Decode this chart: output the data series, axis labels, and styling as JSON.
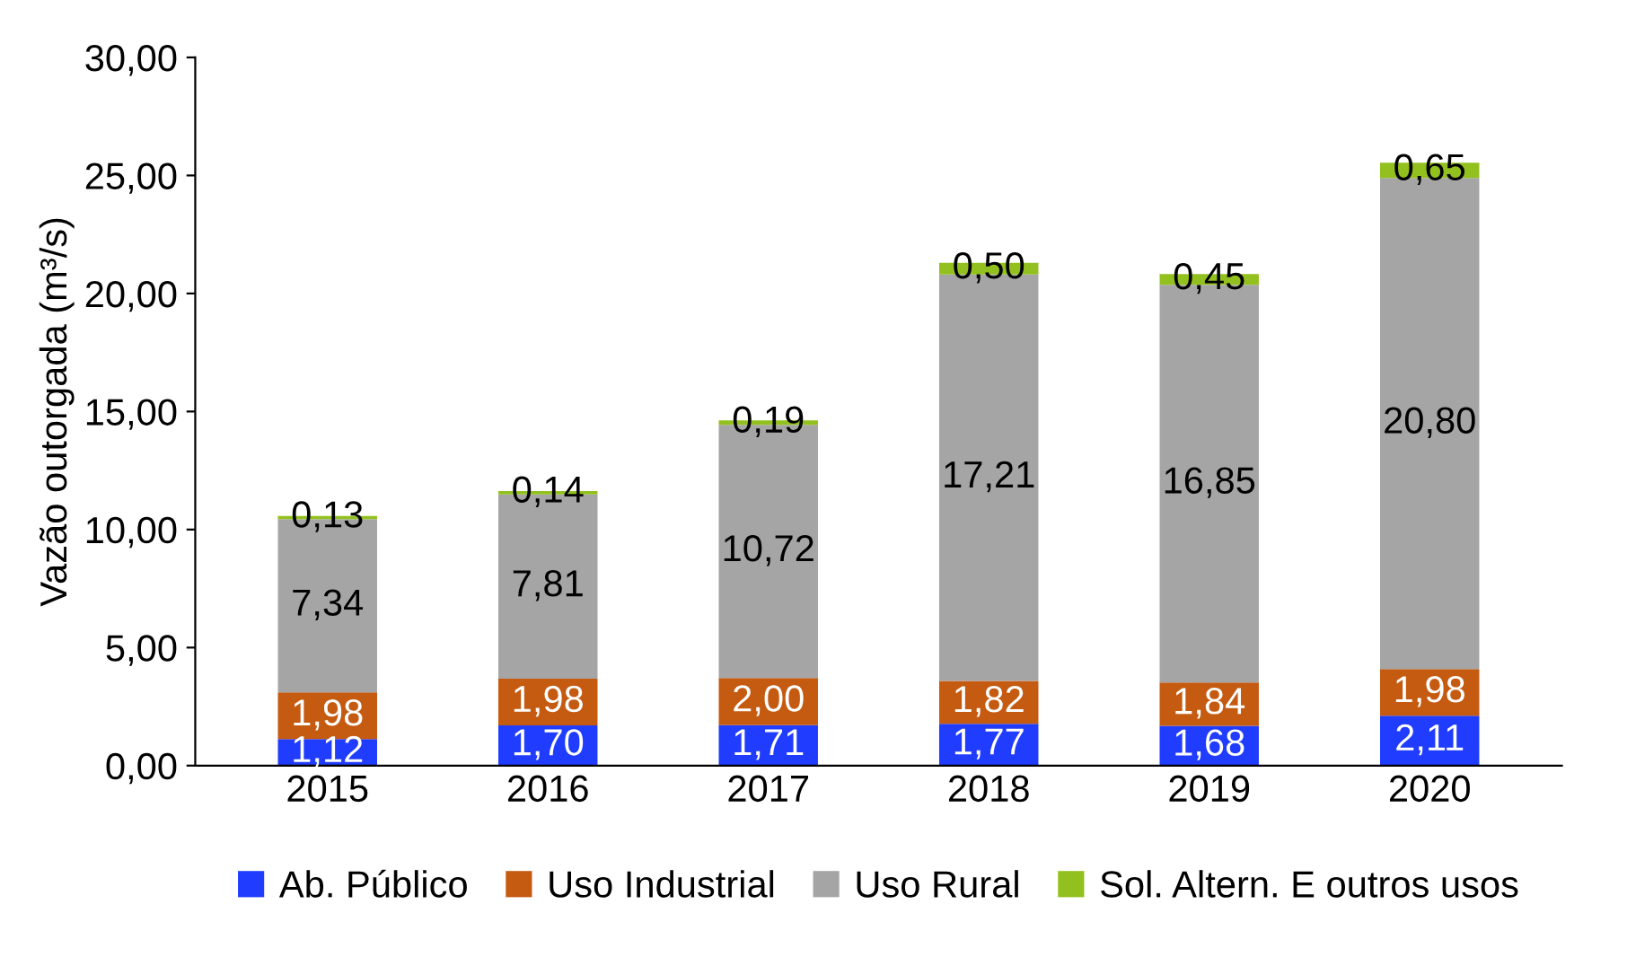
{
  "chart_data": {
    "type": "bar",
    "stacked": true,
    "ylabel": "Vazão outorgada (m³/s)",
    "categories": [
      "2015",
      "2016",
      "2017",
      "2018",
      "2019",
      "2020"
    ],
    "series": [
      {
        "name": "Ab. Público",
        "color": "#1f3cff",
        "values": [
          1.12,
          1.7,
          1.71,
          1.77,
          1.68,
          2.11
        ],
        "value_labels": [
          "1,12",
          "1,70",
          "1,71",
          "1,77",
          "1,68",
          "2,11"
        ]
      },
      {
        "name": "Uso Industrial",
        "color": "#c55a11",
        "values": [
          1.98,
          1.98,
          2.0,
          1.82,
          1.84,
          1.98
        ],
        "value_labels": [
          "1,98",
          "1,98",
          "2,00",
          "1,82",
          "1,84",
          "1,98"
        ]
      },
      {
        "name": "Uso Rural",
        "color": "#a5a5a5",
        "values": [
          7.34,
          7.81,
          10.72,
          17.21,
          16.85,
          20.8
        ],
        "value_labels": [
          "7,34",
          "7,81",
          "10,72",
          "17,21",
          "16,85",
          "20,80"
        ]
      },
      {
        "name": "Sol. Altern. E outros usos",
        "color": "#92c11f",
        "values": [
          0.13,
          0.14,
          0.19,
          0.5,
          0.45,
          0.65
        ],
        "value_labels": [
          "0,13",
          "0,14",
          "0,19",
          "0,50",
          "0,45",
          "0,65"
        ]
      }
    ],
    "ylim": [
      0,
      30
    ],
    "yticks": [
      {
        "value": 0,
        "label": "0,00"
      },
      {
        "value": 5,
        "label": "5,00"
      },
      {
        "value": 10,
        "label": "10,00"
      },
      {
        "value": 15,
        "label": "15,00"
      },
      {
        "value": 20,
        "label": "20,00"
      },
      {
        "value": 25,
        "label": "25,00"
      },
      {
        "value": 30,
        "label": "30,00"
      }
    ],
    "grid": false,
    "legend": "bottom"
  }
}
